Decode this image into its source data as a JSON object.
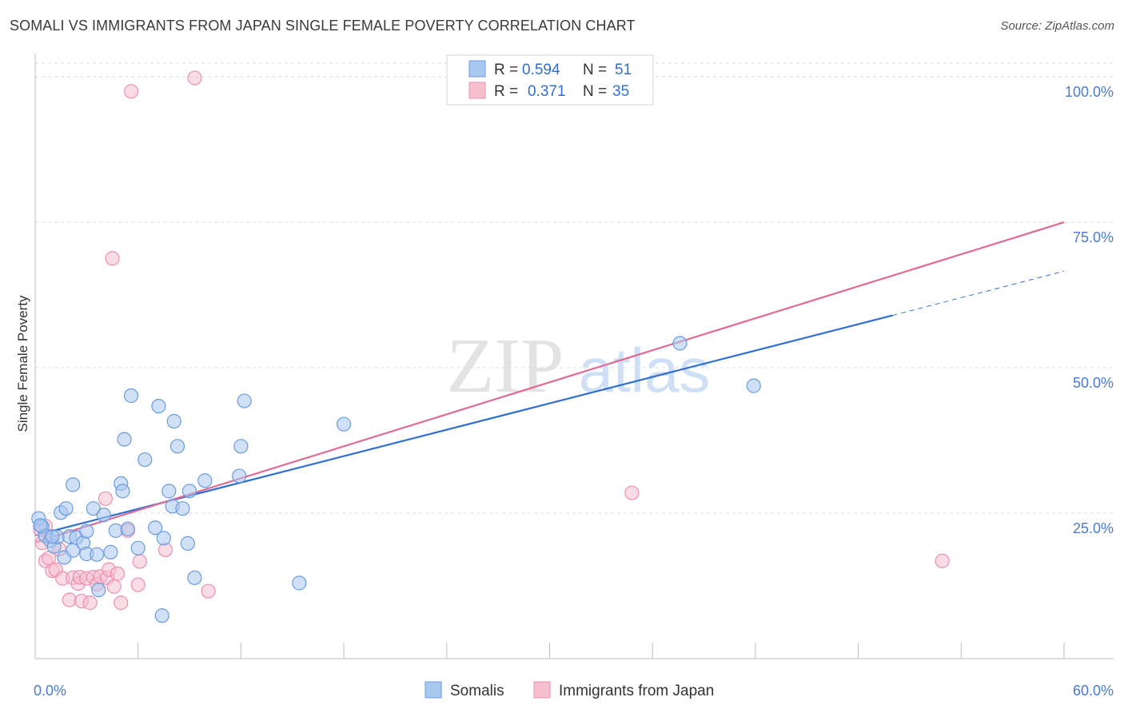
{
  "title": "SOMALI VS IMMIGRANTS FROM JAPAN SINGLE FEMALE POVERTY CORRELATION CHART",
  "source": "Source: ZipAtlas.com",
  "watermark": {
    "zip": "ZIP",
    "atlas": "atlas"
  },
  "colors": {
    "blue_fill": "#a9c8f0",
    "blue_stroke": "#6a9be0",
    "blue_line": "#2f6fd0",
    "pink_fill": "#f6bfd0",
    "pink_stroke": "#ec8fae",
    "pink_line": "#e06a95",
    "grid": "#d8d8d8",
    "tick_text": "#4a7bd0"
  },
  "legend": {
    "r_label": "R =",
    "n_label": "N =",
    "rows": [
      {
        "series": "Somalis",
        "r": "0.594",
        "n": "51"
      },
      {
        "series": "Immigrants from Japan",
        "r": "0.371",
        "n": "35"
      }
    ]
  },
  "chart_data": {
    "type": "scatter",
    "title": "SOMALI VS IMMIGRANTS FROM JAPAN SINGLE FEMALE POVERTY CORRELATION CHART",
    "xlabel": "",
    "ylabel": "Single Female Poverty",
    "xlim": [
      0,
      60
    ],
    "ylim": [
      0,
      104
    ],
    "x_tick_labels": [
      {
        "value": 0,
        "label": "0.0%"
      },
      {
        "value": 60,
        "label": "60.0%"
      }
    ],
    "y_tick_labels": [
      {
        "value": 25,
        "label": "25.0%"
      },
      {
        "value": 50,
        "label": "50.0%"
      },
      {
        "value": 75,
        "label": "75.0%"
      },
      {
        "value": 100,
        "label": "100.0%"
      }
    ],
    "grid": true,
    "legend_position": "bottom-center",
    "series": [
      {
        "name": "Somalis",
        "r": 0.594,
        "n": 51,
        "trend": {
          "x0": 0,
          "y0": 21.2,
          "x1": 50,
          "y1": 59.0,
          "dashed_to_x": 60,
          "dashed_to_y": 66.6
        },
        "points": [
          [
            0.2,
            24.1
          ],
          [
            0.4,
            22.7
          ],
          [
            0.6,
            21.1
          ],
          [
            0.9,
            20.3
          ],
          [
            1.1,
            19.3
          ],
          [
            1.3,
            20.9
          ],
          [
            1.5,
            25.1
          ],
          [
            1.8,
            25.8
          ],
          [
            2.0,
            21.0
          ],
          [
            2.2,
            29.9
          ],
          [
            1.7,
            17.4
          ],
          [
            2.2,
            18.6
          ],
          [
            2.4,
            20.8
          ],
          [
            2.8,
            19.9
          ],
          [
            3.0,
            18.0
          ],
          [
            3.6,
            17.9
          ],
          [
            3.4,
            25.8
          ],
          [
            3.0,
            21.9
          ],
          [
            3.7,
            11.8
          ],
          [
            4.0,
            24.7
          ],
          [
            4.4,
            18.3
          ],
          [
            4.7,
            22.0
          ],
          [
            5.0,
            30.1
          ],
          [
            5.1,
            28.8
          ],
          [
            5.2,
            37.7
          ],
          [
            5.4,
            22.3
          ],
          [
            5.6,
            45.2
          ],
          [
            6.0,
            19.0
          ],
          [
            6.4,
            34.2
          ],
          [
            7.0,
            22.5
          ],
          [
            7.2,
            43.4
          ],
          [
            7.5,
            20.7
          ],
          [
            7.8,
            28.8
          ],
          [
            7.4,
            7.4
          ],
          [
            8.0,
            26.2
          ],
          [
            8.1,
            40.8
          ],
          [
            8.3,
            36.5
          ],
          [
            8.6,
            25.8
          ],
          [
            8.9,
            19.8
          ],
          [
            9.0,
            28.8
          ],
          [
            9.3,
            13.9
          ],
          [
            9.9,
            30.6
          ],
          [
            11.9,
            31.4
          ],
          [
            12.0,
            36.5
          ],
          [
            12.2,
            44.3
          ],
          [
            15.4,
            13.0
          ],
          [
            18.0,
            40.3
          ],
          [
            37.6,
            54.2
          ],
          [
            41.9,
            46.9
          ],
          [
            0.3,
            22.9
          ],
          [
            1.0,
            21.0
          ]
        ]
      },
      {
        "name": "Immigrants from Japan",
        "r": 0.371,
        "n": 35,
        "trend": {
          "x0": 0,
          "y0": 20.0,
          "x1": 60,
          "y1": 75.0
        },
        "points": [
          [
            0.3,
            22.2
          ],
          [
            0.4,
            19.9
          ],
          [
            0.6,
            22.8
          ],
          [
            0.6,
            16.8
          ],
          [
            0.8,
            17.3
          ],
          [
            1.0,
            15.1
          ],
          [
            1.2,
            15.3
          ],
          [
            1.4,
            18.8
          ],
          [
            1.6,
            13.8
          ],
          [
            2.0,
            10.1
          ],
          [
            2.2,
            13.9
          ],
          [
            2.5,
            12.9
          ],
          [
            2.6,
            14.0
          ],
          [
            2.7,
            9.9
          ],
          [
            3.0,
            13.8
          ],
          [
            3.2,
            9.6
          ],
          [
            3.4,
            14.0
          ],
          [
            3.6,
            12.8
          ],
          [
            3.8,
            14.1
          ],
          [
            4.1,
            27.5
          ],
          [
            4.2,
            13.9
          ],
          [
            4.3,
            15.3
          ],
          [
            4.6,
            12.4
          ],
          [
            4.8,
            14.6
          ],
          [
            5.0,
            9.6
          ],
          [
            5.4,
            22.0
          ],
          [
            6.0,
            12.7
          ],
          [
            6.1,
            16.7
          ],
          [
            7.6,
            18.7
          ],
          [
            10.1,
            11.6
          ],
          [
            4.5,
            68.8
          ],
          [
            5.6,
            97.5
          ],
          [
            9.3,
            99.8
          ],
          [
            34.8,
            28.5
          ],
          [
            52.9,
            16.8
          ]
        ]
      }
    ]
  }
}
